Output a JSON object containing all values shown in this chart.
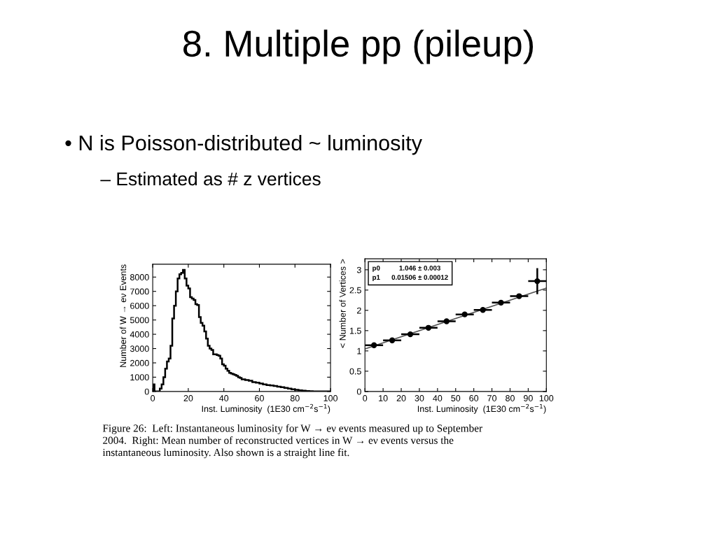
{
  "chart_data": [
    {
      "type": "histogram",
      "title": "8. Multiple pp (pileup)",
      "annotations": [
        "• N is Poisson-distributed ~ luminosity",
        "– Estimated as # z vertices",
        "Figure 26:  Left: Instantaneous luminosity for W → eν events measured up to September\n2004.  Right: Mean number of reconstructed vertices in W → eν events versus the\ninstantaneous luminosity. Also shown is a straight line fit."
      ],
      "xlabel": "Inst. Luminosity  (1E30 cm$^{−2}$s$^{−1}$)",
      "ylabel": "Number of W → eν Events",
      "color": "#000000",
      "bins": [
        0,
        1,
        2,
        3,
        4,
        5,
        6,
        7,
        8,
        9,
        10,
        11,
        12,
        13,
        14,
        15,
        16,
        17,
        18,
        19,
        20,
        21,
        22,
        23,
        24,
        25,
        26,
        27,
        28,
        29,
        30,
        31,
        32,
        33,
        34,
        35,
        36,
        37,
        38,
        39,
        40,
        41,
        42,
        43,
        44,
        45,
        46,
        47,
        48,
        49,
        50,
        52,
        54,
        56,
        58,
        60,
        62,
        64,
        66,
        68,
        70,
        72,
        74,
        76,
        78,
        80,
        82,
        84,
        86,
        88,
        90,
        95,
        100
      ],
      "values": [
        500,
        0,
        0,
        0,
        200,
        500,
        1000,
        1600,
        2100,
        2300,
        3200,
        5100,
        6000,
        7000,
        7900,
        8200,
        8300,
        8500,
        7900,
        7400,
        7200,
        6600,
        6500,
        6400,
        6100,
        6050,
        5200,
        4800,
        4600,
        4200,
        3700,
        3200,
        3000,
        2900,
        2600,
        2600,
        2550,
        2500,
        2300,
        1900,
        1800,
        1600,
        1450,
        1300,
        1250,
        1200,
        1150,
        1100,
        1000,
        950,
        850,
        800,
        750,
        650,
        620,
        550,
        500,
        450,
        420,
        380,
        330,
        300,
        250,
        200,
        150,
        120,
        80,
        50,
        30,
        20,
        10,
        0
      ],
      "xlim": [
        0,
        100
      ],
      "ylim": [
        0,
        8900
      ],
      "xticks": [
        0,
        20,
        40,
        60,
        80,
        100
      ],
      "yticks": [
        0,
        1000,
        2000,
        3000,
        4000,
        5000,
        6000,
        7000,
        8000
      ]
    },
    {
      "type": "scatter",
      "xlabel": "Inst. Luminosity  (1E30 cm$^{−2}$s$^{−1}$)",
      "ylabel": "< Number of Vertices >",
      "annotations": [
        "p0          1.046 ± 0.003\np1      0.01506 ± 0.00012"
      ],
      "series": [
        {
          "type": "scatter",
          "marker": "circle",
          "color": "#000000",
          "x": [
            5,
            15,
            25,
            35,
            45,
            55,
            65,
            75,
            85,
            95
          ],
          "values": [
            1.14,
            1.26,
            1.41,
            1.57,
            1.73,
            1.9,
            2.01,
            2.19,
            2.35,
            2.72
          ],
          "errors": [
            null,
            null,
            null,
            null,
            null,
            null,
            null,
            null,
            null,
            0.32
          ],
          "xerrors": [
            5,
            5,
            5,
            5,
            5,
            5,
            5,
            5,
            5,
            5
          ]
        },
        {
          "type": "line",
          "color": "#555555",
          "x": [
            0,
            100
          ],
          "values": [
            1.05,
            2.55
          ]
        }
      ],
      "xlim": [
        0,
        100
      ],
      "ylim": [
        0,
        3.27
      ],
      "xticks": [
        0,
        10,
        20,
        30,
        40,
        50,
        60,
        70,
        80,
        90,
        100
      ],
      "yticks": [
        0,
        0.5,
        1,
        1.5,
        2,
        2.5,
        3
      ]
    }
  ]
}
